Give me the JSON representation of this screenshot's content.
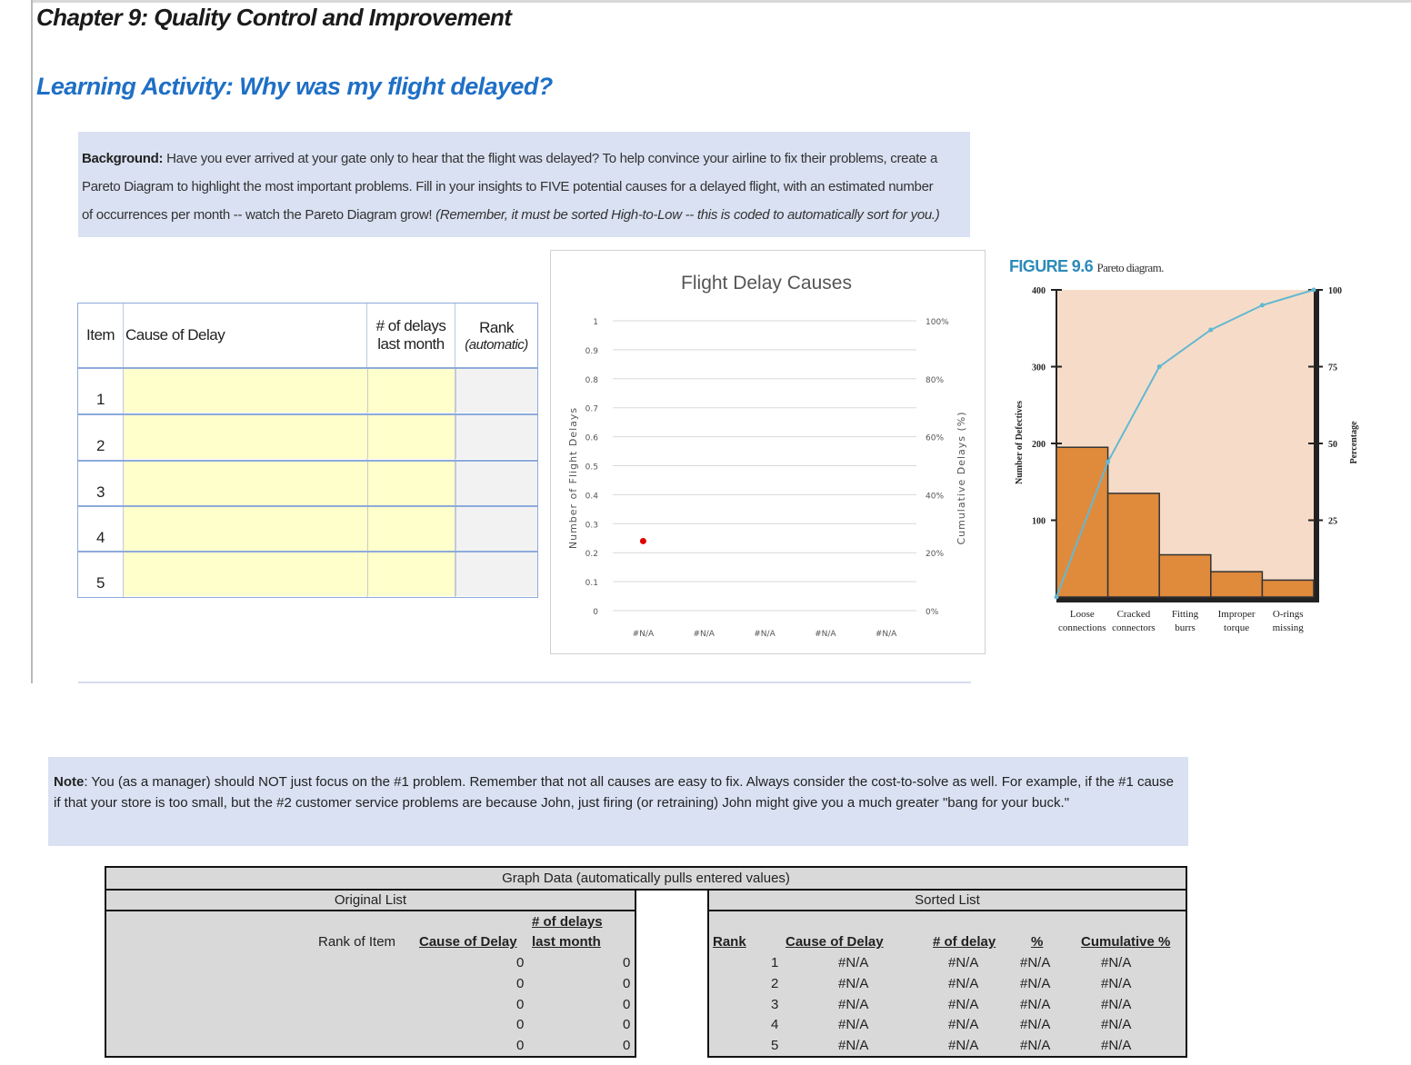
{
  "chapter_title": "Chapter 9: Quality Control and Improvement",
  "activity_title": "Learning Activity:  Why was my flight delayed?",
  "background": {
    "label": "Background:",
    "line1": " Have you ever arrived at your gate only to hear that the flight was delayed?  To help convince your airline to fix their problems, create a",
    "line2": "Pareto Diagram to highlight the most important problems.   Fill in your insights to FIVE potential causes for a delayed flight, with an estimated number",
    "line3a": "of occurrences per month -- watch the Pareto Diagram grow!  ",
    "line3b": "(Remember, it must be sorted High-to-Low -- this is coded to automatically sort for you.)"
  },
  "input_table": {
    "headers": {
      "item": "Item",
      "cause": "Cause of Delay",
      "delays_1": "# of delays",
      "delays_2": "last month",
      "rank_1": "Rank",
      "rank_2": "(automatic)"
    },
    "rows": [
      {
        "item": "1",
        "cause": "",
        "delays": "",
        "rank": ""
      },
      {
        "item": "2",
        "cause": "",
        "delays": "",
        "rank": ""
      },
      {
        "item": "3",
        "cause": "",
        "delays": "",
        "rank": ""
      },
      {
        "item": "4",
        "cause": "",
        "delays": "",
        "rank": ""
      },
      {
        "item": "5",
        "cause": "",
        "delays": "",
        "rank": ""
      }
    ]
  },
  "chart_data": [
    {
      "type": "bar",
      "title": "Flight Delay Causes",
      "ylabel": "Number of Flight Delays",
      "y2label": "Cumulative Delays (%)",
      "categories": [
        "#N/A",
        "#N/A",
        "#N/A",
        "#N/A",
        "#N/A"
      ],
      "ylim": [
        0,
        1
      ],
      "y_ticks": [
        "0",
        "0.1",
        "0.2",
        "0.3",
        "0.4",
        "0.5",
        "0.6",
        "0.7",
        "0.8",
        "0.9",
        "1"
      ],
      "y2_ticks": [
        "0%",
        "20%",
        "40%",
        "60%",
        "80%",
        "100%"
      ],
      "marker": {
        "category_index": 0,
        "y": 0.24,
        "color": "#e00000"
      },
      "grid": true
    },
    {
      "type": "bar",
      "title": "FIGURE 9.6",
      "subtitle": "Pareto diagram.",
      "ylabel": "Number of Defectives",
      "y2label": "Percentage",
      "categories": [
        "Loose connections",
        "Cracked connectors",
        "Fitting burrs",
        "Improper torque",
        "O-rings missing"
      ],
      "values": [
        195,
        135,
        55,
        33,
        22
      ],
      "cumulative_percent": [
        0,
        44,
        75,
        87,
        95,
        100
      ],
      "ylim": [
        0,
        400
      ],
      "y_ticks": [
        "100",
        "200",
        "300",
        "400"
      ],
      "y2_ticks": [
        "25",
        "50",
        "75",
        "100"
      ],
      "colors": {
        "bar": "#e08a3c",
        "panel": "#f6dcc8",
        "line": "#64b8d2"
      }
    }
  ],
  "note": {
    "label": "Note",
    "text": ":  You (as a manager) should NOT just focus on the #1 problem.  Remember that not all causes are easy to fix.  Always consider the cost-to-solve as well.  For example, if the #1 cause if that your store is too small, but the #2 customer service problems are because John, just firing (or retraining) John might give you a much greater \"bang for your buck.\""
  },
  "graph_data": {
    "title": "Graph Data (automatically pulls entered values)",
    "original": {
      "title": "Original List",
      "h_rank": "Rank of Item",
      "h_cause": "Cause of Delay",
      "h_delays_1": "# of delays",
      "h_delays_2": "last month",
      "rows": [
        {
          "cause": "0",
          "delays": "0"
        },
        {
          "cause": "0",
          "delays": "0"
        },
        {
          "cause": "0",
          "delays": "0"
        },
        {
          "cause": "0",
          "delays": "0"
        },
        {
          "cause": "0",
          "delays": "0"
        }
      ]
    },
    "sorted": {
      "title": "Sorted List",
      "h_rank": "Rank",
      "h_cause": "Cause of Delay",
      "h_delays": "# of delay",
      "h_pct": "%",
      "h_cum": "Cumulative %",
      "rows": [
        {
          "rank": "1",
          "cause": "#N/A",
          "delays": "#N/A",
          "pct": "#N/A",
          "cum": "#N/A"
        },
        {
          "rank": "2",
          "cause": "#N/A",
          "delays": "#N/A",
          "pct": "#N/A",
          "cum": "#N/A"
        },
        {
          "rank": "3",
          "cause": "#N/A",
          "delays": "#N/A",
          "pct": "#N/A",
          "cum": "#N/A"
        },
        {
          "rank": "4",
          "cause": "#N/A",
          "delays": "#N/A",
          "pct": "#N/A",
          "cum": "#N/A"
        },
        {
          "rank": "5",
          "cause": "#N/A",
          "delays": "#N/A",
          "pct": "#N/A",
          "cum": "#N/A"
        }
      ]
    }
  }
}
